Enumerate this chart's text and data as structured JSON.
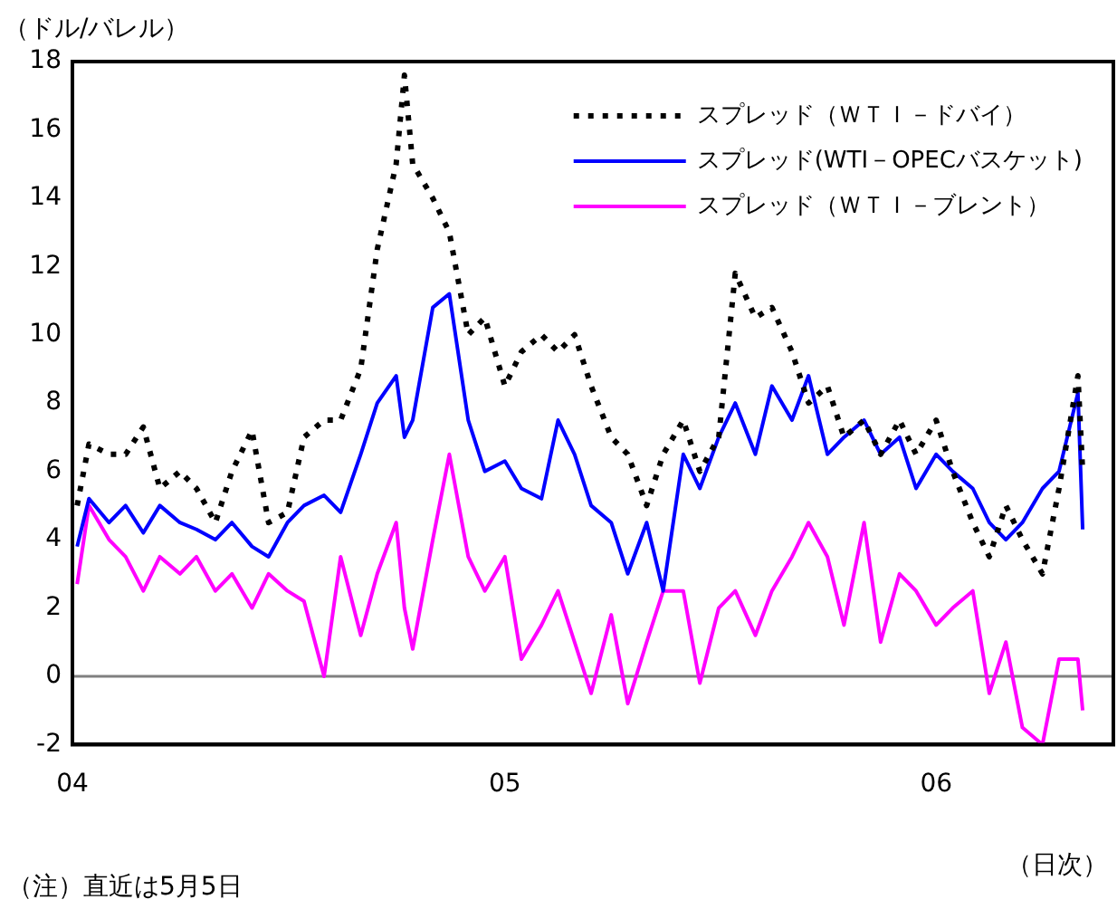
{
  "chart_data": {
    "type": "line",
    "ylabel": "（ドル/バレル）",
    "xlabel": "（日次）",
    "annotations": [
      "（注）直近は5月5日"
    ],
    "x": [
      "2004-01-05",
      "2004-01-15",
      "2004-02-01",
      "2004-02-15",
      "2004-03-01",
      "2004-03-15",
      "2004-04-01",
      "2004-04-15",
      "2004-05-01",
      "2004-05-15",
      "2004-06-01",
      "2004-06-15",
      "2004-07-01",
      "2004-07-15",
      "2004-08-01",
      "2004-08-15",
      "2004-09-01",
      "2004-09-15",
      "2004-10-01",
      "2004-10-08",
      "2004-10-15",
      "2004-11-01",
      "2004-11-15",
      "2004-12-01",
      "2004-12-15",
      "2005-01-01",
      "2005-01-15",
      "2005-02-01",
      "2005-02-15",
      "2005-03-01",
      "2005-03-15",
      "2005-04-01",
      "2005-04-15",
      "2005-05-01",
      "2005-05-15",
      "2005-06-01",
      "2005-06-15",
      "2005-07-01",
      "2005-07-15",
      "2005-08-01",
      "2005-08-15",
      "2005-09-01",
      "2005-09-15",
      "2005-10-01",
      "2005-10-15",
      "2005-11-01",
      "2005-11-15",
      "2005-12-01",
      "2005-12-15",
      "2006-01-01",
      "2006-01-15",
      "2006-02-01",
      "2006-02-15",
      "2006-03-01",
      "2006-03-15",
      "2006-04-01",
      "2006-04-15",
      "2006-05-01",
      "2006-05-05"
    ],
    "series": [
      {
        "name": "スプレッド（ＷＴＩ－ドバイ）",
        "color": "#000000",
        "line_style": "dotted",
        "values": [
          5,
          6.8,
          6.5,
          6.5,
          7.3,
          5.5,
          6,
          5.5,
          4.5,
          6,
          7.2,
          4.5,
          4.8,
          7,
          7.5,
          7.5,
          9,
          12.5,
          15,
          17.6,
          15,
          14,
          13,
          10,
          10.5,
          8.5,
          9.5,
          10,
          9.5,
          10,
          8.5,
          7,
          6.5,
          5,
          6.5,
          7.5,
          6,
          7,
          11.8,
          10.5,
          10.8,
          9.5,
          8,
          8.5,
          7,
          7.5,
          6.5,
          7.5,
          6.5,
          7.5,
          6,
          4.5,
          3.5,
          5,
          4,
          3,
          5.5,
          8.8,
          6
        ]
      },
      {
        "name": "スプレッド(WTI－OPECバスケット)",
        "color": "#0000ff",
        "line_style": "solid",
        "values": [
          3.8,
          5.2,
          4.5,
          5,
          4.2,
          5,
          4.5,
          4.3,
          4,
          4.5,
          3.8,
          3.5,
          4.5,
          5,
          5.3,
          4.8,
          6.5,
          8,
          8.8,
          7,
          7.5,
          10.8,
          11.2,
          7.5,
          6,
          6.3,
          5.5,
          5.2,
          7.5,
          6.5,
          5,
          4.5,
          3,
          4.5,
          2.5,
          6.5,
          5.5,
          7,
          8,
          6.5,
          8.5,
          7.5,
          8.8,
          6.5,
          7,
          7.5,
          6.5,
          7,
          5.5,
          6.5,
          6,
          5.5,
          4.5,
          4,
          4.5,
          5.5,
          6,
          8.3,
          4.3
        ]
      },
      {
        "name": "スプレッド（ＷＴＩ－ブレント）",
        "color": "#ff00ff",
        "line_style": "solid",
        "values": [
          2.7,
          5,
          4,
          3.5,
          2.5,
          3.5,
          3,
          3.5,
          2.5,
          3,
          2,
          3,
          2.5,
          2.2,
          0,
          3.5,
          1.2,
          3,
          4.5,
          2,
          0.8,
          4,
          6.5,
          3.5,
          2.5,
          3.5,
          0.5,
          1.5,
          2.5,
          1,
          -0.5,
          1.8,
          -0.8,
          1,
          2.5,
          2.5,
          -0.2,
          2,
          2.5,
          1.2,
          2.5,
          3.5,
          4.5,
          3.5,
          1.5,
          4.5,
          1,
          3,
          2.5,
          1.5,
          2,
          2.5,
          -0.5,
          1,
          -1.5,
          -2,
          0.5,
          0.5,
          -1
        ]
      }
    ],
    "xlim": [
      "2004-01-01",
      "2006-05-31"
    ],
    "xticks": [
      {
        "value": "2004-01-01",
        "label": "04"
      },
      {
        "value": "2005-01-01",
        "label": "05"
      },
      {
        "value": "2006-01-01",
        "label": "06"
      }
    ],
    "ylim": [
      -2,
      18
    ],
    "yticks": [
      -2,
      0,
      2,
      4,
      6,
      8,
      10,
      12,
      14,
      16,
      18
    ],
    "ref_lines": [
      {
        "axis": "y",
        "value": 0,
        "color": "#808080"
      }
    ],
    "grid": false,
    "legend": "top right",
    "marker": "none"
  }
}
